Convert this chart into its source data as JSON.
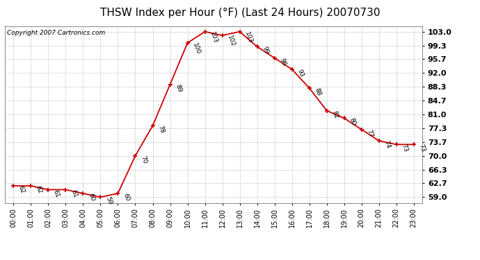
{
  "title": "THSW Index per Hour (°F) (Last 24 Hours) 20070730",
  "copyright": "Copyright 2007 Cartronics.com",
  "hours": [
    0,
    1,
    2,
    3,
    4,
    5,
    6,
    7,
    8,
    9,
    10,
    11,
    12,
    13,
    14,
    15,
    16,
    17,
    18,
    19,
    20,
    21,
    22,
    23
  ],
  "hour_labels": [
    "00:00",
    "01:00",
    "02:00",
    "03:00",
    "04:00",
    "05:00",
    "06:00",
    "07:00",
    "08:00",
    "09:00",
    "10:00",
    "11:00",
    "12:00",
    "13:00",
    "14:00",
    "15:00",
    "16:00",
    "17:00",
    "18:00",
    "19:00",
    "20:00",
    "21:00",
    "22:00",
    "23:00"
  ],
  "values": [
    62,
    62,
    61,
    61,
    60,
    59,
    60,
    70,
    78,
    89,
    100,
    103,
    102,
    103,
    99,
    96,
    93,
    88,
    82,
    80,
    77,
    74,
    73,
    73
  ],
  "yticks": [
    59.0,
    62.7,
    66.3,
    70.0,
    73.7,
    77.3,
    81.0,
    84.7,
    88.3,
    92.0,
    95.7,
    99.3,
    103.0
  ],
  "ylim": [
    57.5,
    104.5
  ],
  "line_color": "#cc0000",
  "marker_color": "#cc0000",
  "grid_color": "#c0c0c0",
  "bg_color": "#ffffff",
  "title_fontsize": 11,
  "label_fontsize": 7,
  "copyright_fontsize": 6.5,
  "annotation_fontsize": 6.5,
  "ytick_fontsize": 8,
  "xtick_fontsize": 7
}
